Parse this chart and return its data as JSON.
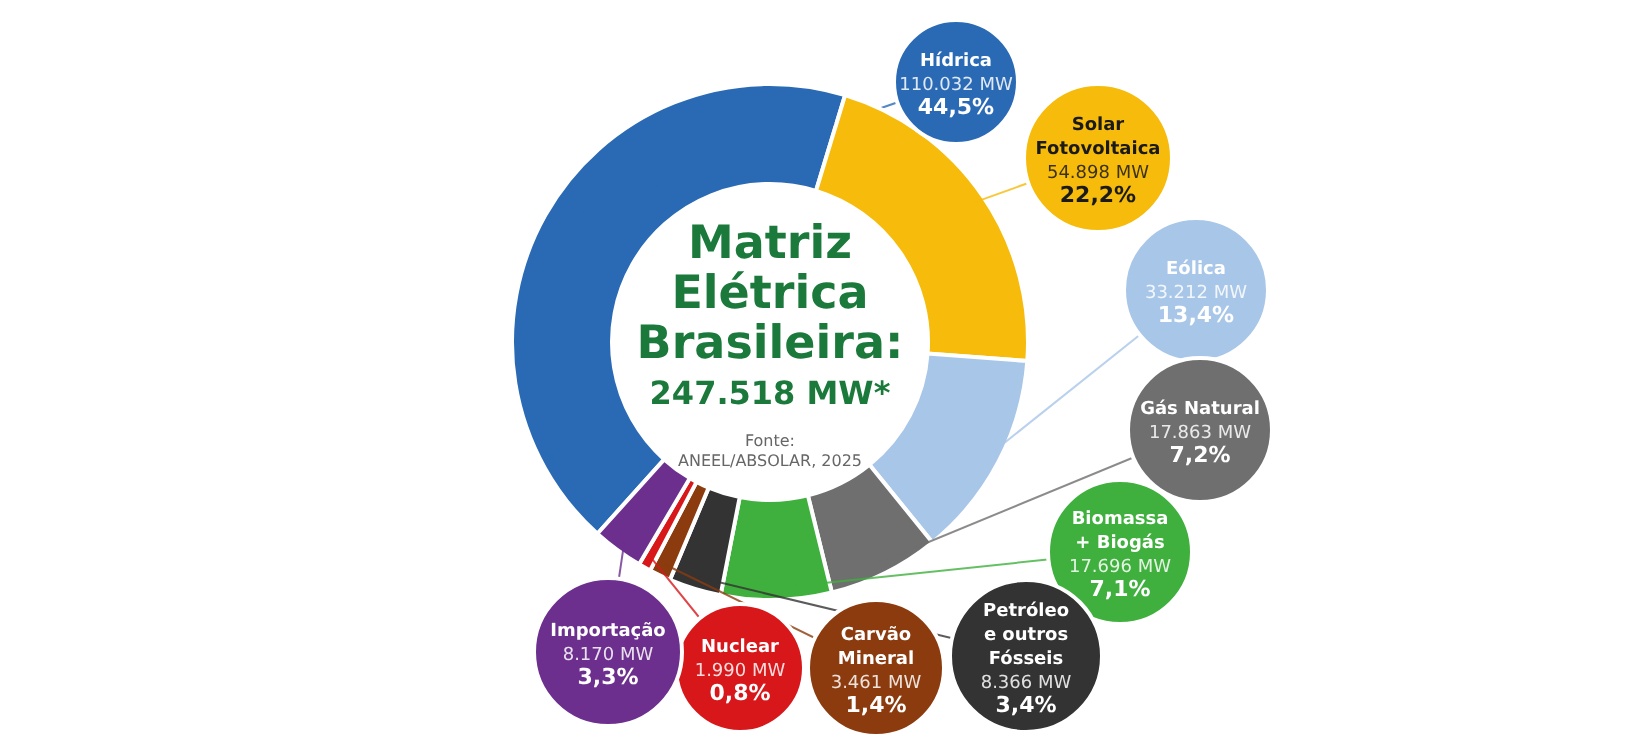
{
  "chart_data": {
    "type": "donut",
    "title": "Matriz Elétrica Brasileira:",
    "subtitle": "247.518 MW*",
    "categories": [
      "Hídrica",
      "Solar Fotovoltaica",
      "Eólica",
      "Gás Natural",
      "Biomassa + Biogás",
      "Petróleo e outros Fósseis",
      "Carvão Mineral",
      "Nuclear",
      "Importação"
    ],
    "values": [
      110032,
      54898,
      33212,
      17863,
      17696,
      8366,
      3461,
      1990,
      8170
    ],
    "colors": [
      "#2a6ab5",
      "#f6bb0b",
      "#a8c6e8",
      "#6f6f6f",
      "#3fb03d",
      "#333333",
      "#8b3b0e",
      "#d8171b",
      "#6c2f8e"
    ],
    "value_labels": [
      "110.032 MW",
      "54.898 MW",
      "33.212 MW",
      "17.863 MW",
      "17.696 MW",
      "8.366 MW",
      "3.461 MW",
      "1.990 MW",
      "8.170 MW"
    ],
    "annotations": [
      {
        "text": "44,5%",
        "x": "Hídrica"
      },
      {
        "text": "22,2%",
        "x": "Solar Fotovoltaica"
      },
      {
        "text": "13,4%",
        "x": "Eólica"
      },
      {
        "text": "7,2%",
        "x": "Gás Natural"
      },
      {
        "text": "7,1%",
        "x": "Biomassa + Biogás"
      },
      {
        "text": "3,4%",
        "x": "Petróleo e outros Fósseis"
      },
      {
        "text": "1,4%",
        "x": "Carvão Mineral"
      },
      {
        "text": "0,8%",
        "x": "Nuclear"
      },
      {
        "text": "3,3%",
        "x": "Importação"
      },
      "Fonte: ANEEL/ABSOLAR, 2025"
    ]
  }
}
